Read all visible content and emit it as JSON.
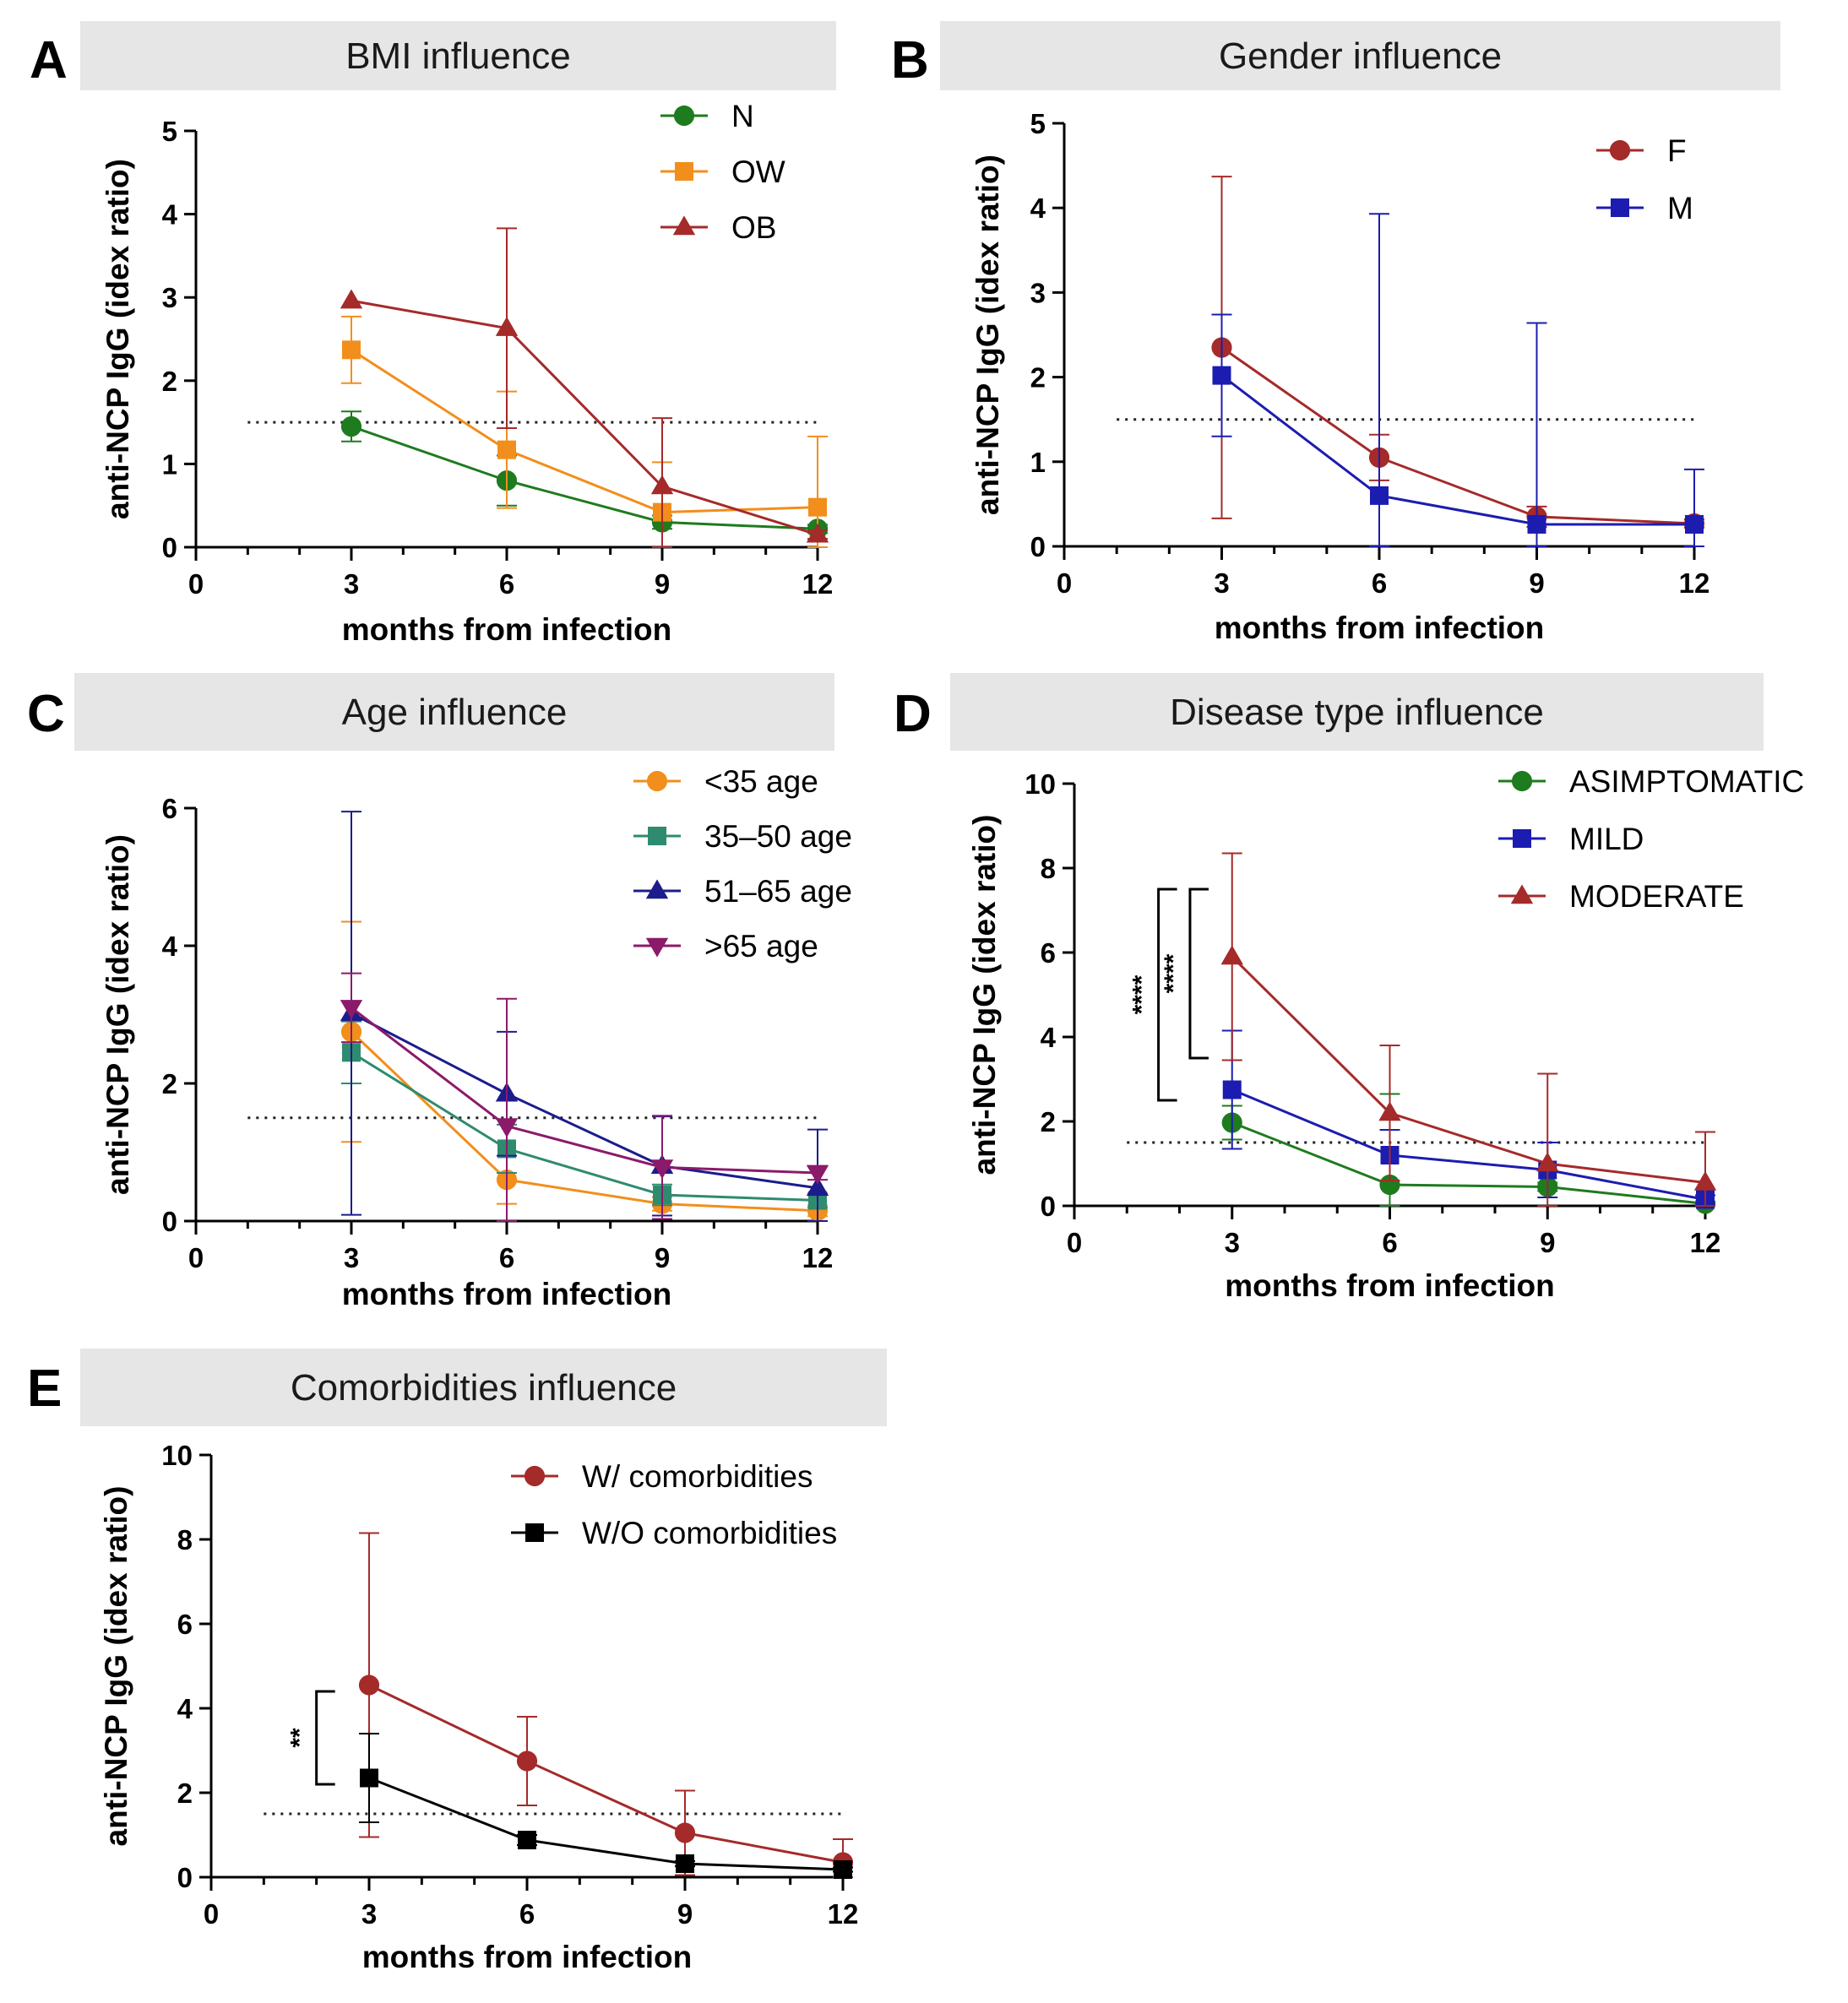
{
  "figure": {
    "common": {
      "xlabel": "months from infection",
      "ylabel": "anti-NCP IgG (idex ratio)"
    }
  },
  "chart_data": [
    {
      "id": "A",
      "type": "line",
      "title": "BMI influence",
      "xlabel": "months from infection",
      "ylabel": "anti-NCP IgG (idex ratio)",
      "x": [
        3,
        6,
        9,
        12
      ],
      "xticks": [
        0,
        3,
        6,
        9,
        12
      ],
      "xlim": [
        0,
        12
      ],
      "ylim": [
        0,
        5
      ],
      "yticks": [
        0,
        1,
        2,
        3,
        4,
        5
      ],
      "threshold": 1.5,
      "legend_position": "top-right",
      "series": [
        {
          "name": "N",
          "color": "#1e7b1e",
          "marker": "circle",
          "values": [
            1.45,
            0.8,
            0.3,
            0.22
          ],
          "err": [
            0.18,
            0.3,
            0.08,
            0.05
          ]
        },
        {
          "name": "OW",
          "color": "#f28e1c",
          "marker": "square",
          "values": [
            2.37,
            1.17,
            0.42,
            0.48
          ],
          "err": [
            0.4,
            0.7,
            0.6,
            0.85
          ]
        },
        {
          "name": "OB",
          "color": "#a52a2a",
          "marker": "triangle",
          "values": [
            2.96,
            2.63,
            0.73,
            0.15
          ],
          "err": [
            0.0,
            1.2,
            0.82,
            0.05
          ]
        }
      ]
    },
    {
      "id": "B",
      "type": "line",
      "title": "Gender influence",
      "xlabel": "months from infection",
      "ylabel": "anti-NCP IgG (idex ratio)",
      "x": [
        3,
        6,
        9,
        12
      ],
      "xticks": [
        0,
        3,
        6,
        9,
        12
      ],
      "xlim": [
        0,
        12
      ],
      "ylim": [
        0,
        5
      ],
      "yticks": [
        0,
        1,
        2,
        3,
        4,
        5
      ],
      "threshold": 1.5,
      "legend_position": "top-right",
      "series": [
        {
          "name": "F",
          "color": "#a52a2a",
          "marker": "circle",
          "values": [
            2.35,
            1.05,
            0.35,
            0.27
          ],
          "err": [
            2.02,
            0.27,
            0.12,
            0.05
          ]
        },
        {
          "name": "M",
          "color": "#1c1cb0",
          "marker": "square",
          "values": [
            2.02,
            0.6,
            0.26,
            0.26
          ],
          "err": [
            0.72,
            3.33,
            2.38,
            0.65
          ]
        }
      ]
    },
    {
      "id": "C",
      "type": "line",
      "title": "Age influence",
      "xlabel": "months from infection",
      "ylabel": "anti-NCP IgG (idex ratio)",
      "x": [
        3,
        6,
        9,
        12
      ],
      "xticks": [
        0,
        3,
        6,
        9,
        12
      ],
      "xlim": [
        0,
        12
      ],
      "ylim": [
        0,
        6
      ],
      "yticks": [
        0,
        2,
        4,
        6
      ],
      "threshold": 1.5,
      "legend_position": "top-right",
      "series": [
        {
          "name": "<35 age",
          "color": "#f28e1c",
          "marker": "circle",
          "values": [
            2.75,
            0.6,
            0.25,
            0.15
          ],
          "err": [
            1.6,
            0.35,
            0.1,
            0.08
          ]
        },
        {
          "name": "35–50 age",
          "color": "#2e8b6f",
          "marker": "square",
          "values": [
            2.45,
            1.05,
            0.38,
            0.3
          ],
          "err": [
            0.45,
            0.35,
            0.15,
            0.1
          ]
        },
        {
          "name": "51–65 age",
          "color": "#1c1c8c",
          "marker": "triangle",
          "values": [
            3.02,
            1.85,
            0.8,
            0.48
          ],
          "err": [
            2.93,
            0.9,
            0.72,
            0.85
          ]
        },
        {
          "name": ">65 age",
          "color": "#8b1a6b",
          "marker": "triangle-down",
          "values": [
            3.1,
            1.38,
            0.78,
            0.7
          ],
          "err": [
            0.5,
            1.85,
            0.75,
            0.1
          ]
        }
      ]
    },
    {
      "id": "D",
      "type": "line",
      "title": "Disease type influence",
      "xlabel": "months from infection",
      "ylabel": "anti-NCP IgG (idex ratio)",
      "x": [
        3,
        6,
        9,
        12
      ],
      "xticks": [
        0,
        3,
        6,
        9,
        12
      ],
      "xlim": [
        0,
        12
      ],
      "ylim": [
        0,
        10
      ],
      "yticks": [
        0,
        2,
        4,
        6,
        8,
        10
      ],
      "threshold": 1.5,
      "legend_position": "top-right",
      "significance": [
        {
          "label": "****",
          "y_from": 2.5,
          "y_to": 7.5,
          "x": 1.6
        },
        {
          "label": "****",
          "y_from": 3.5,
          "y_to": 7.5,
          "x": 2.2
        }
      ],
      "series": [
        {
          "name": "ASIMPTOMATIC",
          "color": "#1e7b1e",
          "marker": "circle",
          "values": [
            1.97,
            0.5,
            0.45,
            0.05
          ],
          "err": [
            0.4,
            2.15,
            0.1,
            0.05
          ]
        },
        {
          "name": "MILD",
          "color": "#1c1cb0",
          "marker": "square",
          "values": [
            2.75,
            1.2,
            0.85,
            0.15
          ],
          "err": [
            1.4,
            0.6,
            0.65,
            0.1
          ]
        },
        {
          "name": "MODERATE",
          "color": "#a52a2a",
          "marker": "triangle",
          "values": [
            5.9,
            2.2,
            1.0,
            0.55
          ],
          "err": [
            2.45,
            1.6,
            2.13,
            1.2
          ]
        }
      ]
    },
    {
      "id": "E",
      "type": "line",
      "title": "Comorbidities influence",
      "xlabel": "months from infection",
      "ylabel": "anti-NCP IgG (idex ratio)",
      "x": [
        3,
        6,
        9,
        12
      ],
      "xticks": [
        0,
        3,
        6,
        9,
        12
      ],
      "xlim": [
        0,
        12
      ],
      "ylim": [
        0,
        10
      ],
      "yticks": [
        0,
        2,
        4,
        6,
        8,
        10
      ],
      "threshold": 1.5,
      "legend_position": "top-right",
      "significance": [
        {
          "label": "**",
          "y_from": 2.2,
          "y_to": 4.4,
          "x": 2.0
        }
      ],
      "series": [
        {
          "name": "W/ comorbidities",
          "color": "#a52a2a",
          "marker": "circle",
          "values": [
            4.55,
            2.75,
            1.05,
            0.35
          ],
          "err": [
            3.6,
            1.05,
            1.0,
            0.55
          ]
        },
        {
          "name": "W/O comorbidities",
          "color": "#000000",
          "marker": "square",
          "values": [
            2.35,
            0.88,
            0.32,
            0.18
          ],
          "err": [
            1.05,
            0.12,
            0.06,
            0.05
          ]
        }
      ]
    }
  ]
}
